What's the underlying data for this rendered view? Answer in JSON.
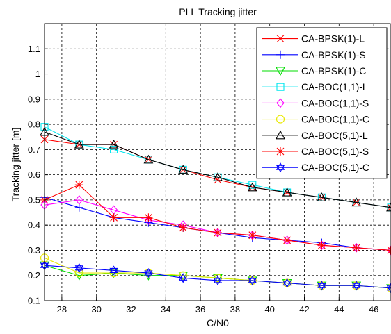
{
  "chart_data": {
    "type": "line",
    "title": "PLL Tracking jitter",
    "xlabel": "C/N0",
    "ylabel": "Tracking jitter [m]",
    "xlim": [
      27,
      47
    ],
    "ylim": [
      0.1,
      1.2
    ],
    "xticks": [
      "28",
      "30",
      "32",
      "34",
      "36",
      "38",
      "40",
      "42",
      "44",
      "46"
    ],
    "yticks": [
      "0.1",
      "0.2",
      "0.3",
      "0.4",
      "0.5",
      "0.6",
      "0.7",
      "0.8",
      "0.9",
      "1",
      "1.1"
    ],
    "grid": true,
    "legend_position": "top-right",
    "x": [
      27,
      29,
      31,
      33,
      35,
      37,
      39,
      41,
      43,
      45,
      47
    ],
    "series": [
      {
        "name": "CA-BPSK(1)-L",
        "color": "#ff0000",
        "marker": "x",
        "values": [
          0.74,
          0.72,
          0.72,
          0.66,
          0.62,
          0.58,
          0.55,
          0.53,
          0.51,
          0.49,
          0.47
        ]
      },
      {
        "name": "CA-BPSK(1)-S",
        "color": "#0000ff",
        "marker": "plus",
        "values": [
          0.51,
          0.47,
          0.43,
          0.41,
          0.39,
          0.37,
          0.35,
          0.34,
          0.33,
          0.31,
          0.3
        ]
      },
      {
        "name": "CA-BPSK(1)-C",
        "color": "#00dd00",
        "marker": "triangle-down",
        "values": [
          0.24,
          0.2,
          0.21,
          0.2,
          0.2,
          0.19,
          0.18,
          0.17,
          0.16,
          0.16,
          0.15
        ]
      },
      {
        "name": "CA-BOC(1,1)-L",
        "color": "#00e5ee",
        "marker": "square",
        "values": [
          0.79,
          0.72,
          0.7,
          0.66,
          0.62,
          0.59,
          0.56,
          0.53,
          0.51,
          0.49,
          0.47
        ]
      },
      {
        "name": "CA-BOC(1,1)-S",
        "color": "#ff00ff",
        "marker": "diamond",
        "values": [
          0.48,
          0.5,
          0.46,
          0.42,
          0.4,
          0.37,
          0.36,
          0.34,
          0.32,
          0.31,
          0.3
        ]
      },
      {
        "name": "CA-BOC(1,1)-C",
        "color": "#e8e800",
        "marker": "circle",
        "values": [
          0.27,
          0.21,
          0.21,
          0.21,
          0.2,
          0.19,
          0.18,
          0.17,
          0.16,
          0.16,
          0.15
        ]
      },
      {
        "name": "CA-BOC(5,1)-L",
        "color": "#000000",
        "marker": "triangle-up",
        "values": [
          0.77,
          0.72,
          0.72,
          0.66,
          0.62,
          0.59,
          0.55,
          0.53,
          0.51,
          0.49,
          0.47
        ]
      },
      {
        "name": "CA-BOC(5,1)-S",
        "color": "#ff0000",
        "marker": "star",
        "values": [
          0.5,
          0.56,
          0.43,
          0.43,
          0.39,
          0.37,
          0.36,
          0.34,
          0.32,
          0.31,
          0.3
        ]
      },
      {
        "name": "CA-BOC(5,1)-C",
        "color": "#0000ff",
        "marker": "hexagram",
        "values": [
          0.24,
          0.23,
          0.22,
          0.21,
          0.19,
          0.18,
          0.18,
          0.17,
          0.16,
          0.16,
          0.15
        ]
      }
    ]
  }
}
